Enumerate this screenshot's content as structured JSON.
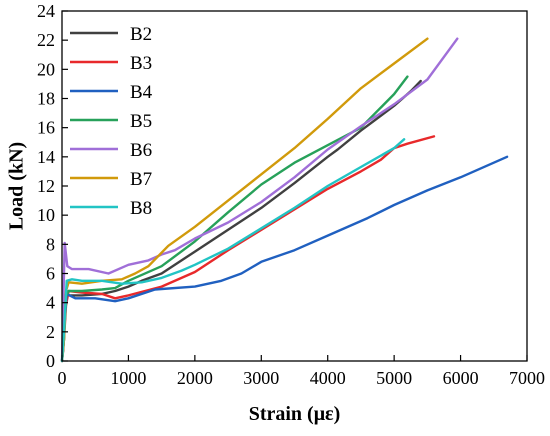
{
  "chart_data": {
    "type": "line",
    "title": "",
    "xlabel": "Strain (με)",
    "ylabel": "Load (kN)",
    "xlim": [
      0,
      7000
    ],
    "ylim": [
      0,
      24
    ],
    "xticks": [
      0,
      1000,
      2000,
      3000,
      4000,
      5000,
      6000,
      7000
    ],
    "yticks": [
      0,
      2,
      4,
      6,
      8,
      10,
      12,
      14,
      16,
      18,
      20,
      22,
      24
    ],
    "grid": false,
    "legend_position": "top-left",
    "series": [
      {
        "name": "B2",
        "color": "#404040",
        "x": [
          0,
          20,
          40,
          60,
          100,
          300,
          600,
          800,
          1000,
          1200,
          1500,
          1700,
          2000,
          2500,
          3000,
          3500,
          4000,
          4150,
          4500,
          5000,
          5250,
          5400
        ],
        "y": [
          0,
          0.8,
          3,
          4.6,
          4.5,
          4.5,
          4.6,
          4.8,
          5.1,
          5.5,
          6.0,
          6.6,
          7.5,
          9.0,
          10.5,
          12.2,
          14.0,
          14.5,
          15.8,
          17.5,
          18.5,
          19.2
        ]
      },
      {
        "name": "B3",
        "color": "#e8292b",
        "x": [
          0,
          30,
          60,
          100,
          300,
          600,
          800,
          1000,
          1500,
          2000,
          2500,
          3000,
          3500,
          4000,
          4500,
          4800,
          5000,
          5200,
          5600
        ],
        "y": [
          0,
          1.5,
          3.8,
          4.8,
          4.7,
          4.6,
          4.3,
          4.5,
          5.1,
          6.1,
          7.6,
          9.0,
          10.4,
          11.8,
          13.0,
          13.8,
          14.6,
          14.9,
          15.4
        ]
      },
      {
        "name": "B4",
        "color": "#2060c0",
        "x": [
          0,
          30,
          70,
          200,
          500,
          800,
          1000,
          1400,
          2000,
          2400,
          2700,
          3000,
          3500,
          4000,
          4600,
          5000,
          5500,
          6000,
          6700
        ],
        "y": [
          0,
          2,
          4.6,
          4.3,
          4.3,
          4.1,
          4.3,
          4.9,
          5.1,
          5.5,
          6.0,
          6.8,
          7.6,
          8.6,
          9.8,
          10.7,
          11.7,
          12.6,
          14.0
        ]
      },
      {
        "name": "B5",
        "color": "#27a15a",
        "x": [
          0,
          30,
          60,
          100,
          300,
          600,
          800,
          1000,
          1500,
          2000,
          2500,
          3000,
          3500,
          4000,
          4500,
          5000,
          5200
        ],
        "y": [
          0,
          1.5,
          4.5,
          4.8,
          4.8,
          4.9,
          5.0,
          5.5,
          6.5,
          8.2,
          10.2,
          12.1,
          13.6,
          14.8,
          16.0,
          18.3,
          19.5
        ]
      },
      {
        "name": "B6",
        "color": "#a06fd8",
        "x": [
          0,
          40,
          80,
          150,
          400,
          700,
          1000,
          1300,
          1500,
          1700,
          2000,
          2500,
          3000,
          3500,
          4000,
          4500,
          5000,
          5500,
          5950
        ],
        "y": [
          0,
          8.1,
          6.5,
          6.3,
          6.3,
          6.0,
          6.6,
          6.9,
          7.3,
          7.6,
          8.4,
          9.5,
          10.9,
          12.6,
          14.5,
          16.1,
          17.6,
          19.3,
          22.1
        ]
      },
      {
        "name": "B7",
        "color": "#d19a0b",
        "x": [
          0,
          30,
          60,
          100,
          300,
          600,
          900,
          1100,
          1300,
          1600,
          2000,
          2500,
          3000,
          3500,
          4000,
          4500,
          5000,
          5500
        ],
        "y": [
          0,
          1.5,
          4.8,
          5.4,
          5.3,
          5.5,
          5.6,
          6.0,
          6.5,
          7.9,
          9.2,
          11.0,
          12.8,
          14.6,
          16.6,
          18.7,
          20.4,
          22.1
        ]
      },
      {
        "name": "B8",
        "color": "#22c4c4",
        "x": [
          0,
          30,
          70,
          150,
          300,
          600,
          900,
          1200,
          1500,
          1800,
          2000,
          2500,
          3000,
          3500,
          3700,
          4000,
          4500,
          5000,
          5150
        ],
        "y": [
          0,
          2,
          5.5,
          5.6,
          5.5,
          5.5,
          5.3,
          5.4,
          5.7,
          6.2,
          6.6,
          7.7,
          9.1,
          10.5,
          11.1,
          12.0,
          13.3,
          14.6,
          15.2
        ]
      }
    ]
  }
}
